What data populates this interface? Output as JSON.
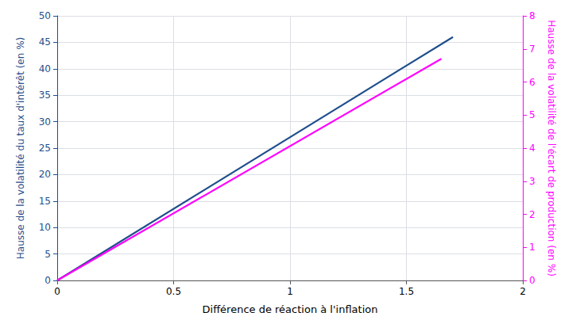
{
  "chart_data": {
    "type": "line",
    "xlabel": "Différence de réaction à l'inflation",
    "ylabel": "Hausse de la volatilité du taux d'intérêt (en %)",
    "y2label": "Hausse de la volatilité de l'écart de production (en %)",
    "xlim": [
      0,
      2
    ],
    "xticks": [
      0,
      0.5,
      1,
      1.5,
      2
    ],
    "ylim": [
      0,
      50
    ],
    "yticks": [
      0,
      5,
      10,
      15,
      20,
      25,
      30,
      35,
      40,
      45,
      50
    ],
    "y2lim": [
      0,
      8
    ],
    "y2ticks": [
      0,
      1,
      2,
      3,
      4,
      5,
      6,
      7,
      8
    ],
    "grid": true,
    "series": [
      {
        "color": "#1F4E8C",
        "x": [
          0,
          1.7
        ],
        "values": [
          0,
          46
        ]
      },
      {
        "color": "#FF00FF",
        "x": [
          0,
          1.65
        ],
        "values": [
          0,
          6.7
        ],
        "axis": "y2"
      }
    ]
  }
}
